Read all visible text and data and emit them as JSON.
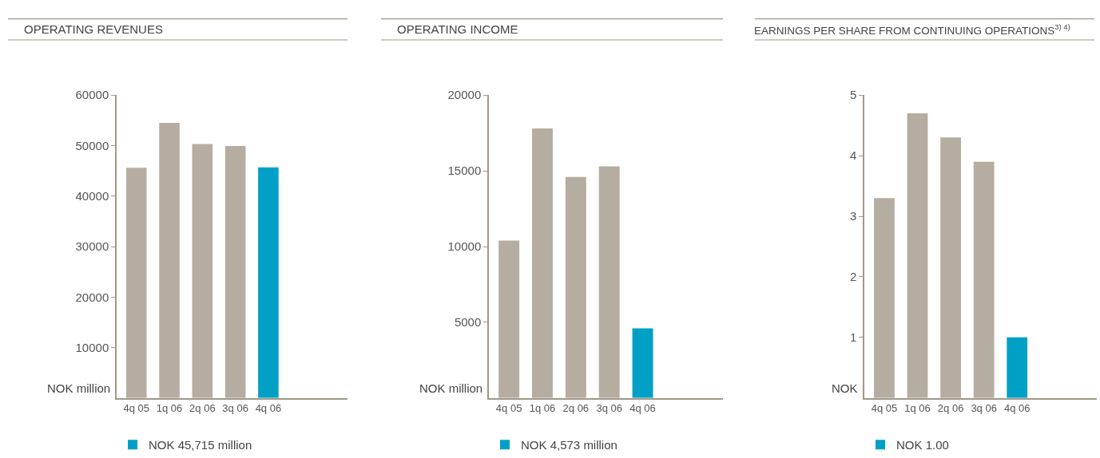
{
  "chart_data": [
    {
      "type": "bar",
      "title": "OPERATING REVENUES",
      "ylabel": "NOK million",
      "categories": [
        "4q 05",
        "1q 06",
        "2q 06",
        "3q 06",
        "4q 06"
      ],
      "series": [
        {
          "color": "#b5ada0",
          "values": [
            45600,
            54500,
            50300,
            49900,
            null
          ]
        },
        {
          "name": "NOK 45,715 million",
          "color": "#00a0c6",
          "values": [
            null,
            null,
            null,
            null,
            45700
          ]
        }
      ],
      "ylim": [
        0,
        60000
      ],
      "yticks": [
        10000,
        20000,
        30000,
        40000,
        50000,
        60000
      ],
      "grid": false,
      "legend": "bottom"
    },
    {
      "type": "bar",
      "title": "OPERATING INCOME",
      "ylabel": "NOK million",
      "categories": [
        "4q 05",
        "1q 06",
        "2q 06",
        "3q 06",
        "4q 06"
      ],
      "series": [
        {
          "color": "#b5ada0",
          "values": [
            10400,
            17800,
            14600,
            15300,
            null
          ]
        },
        {
          "name": "NOK 4,573 million",
          "color": "#00a0c6",
          "values": [
            null,
            null,
            null,
            null,
            4600
          ]
        }
      ],
      "ylim": [
        0,
        20000
      ],
      "yticks": [
        5000,
        10000,
        15000,
        20000
      ],
      "grid": false,
      "legend": "bottom"
    },
    {
      "type": "bar",
      "title": "EARNINGS PER SHARE FROM CONTINUING OPERATIONS$^{3) 4)}$",
      "ylabel": "NOK",
      "categories": [
        "4q 05",
        "1q 06",
        "2q 06",
        "3q 06",
        "4q 06"
      ],
      "series": [
        {
          "color": "#b5ada0",
          "values": [
            3.3,
            4.7,
            4.3,
            3.9,
            null
          ]
        },
        {
          "name": "NOK 1.00",
          "color": "#00a0c6",
          "values": [
            null,
            null,
            null,
            null,
            1.0
          ]
        }
      ],
      "ylim": [
        0,
        5
      ],
      "yticks": [
        1,
        2,
        3,
        4,
        5
      ],
      "grid": false,
      "legend": "bottom"
    }
  ]
}
